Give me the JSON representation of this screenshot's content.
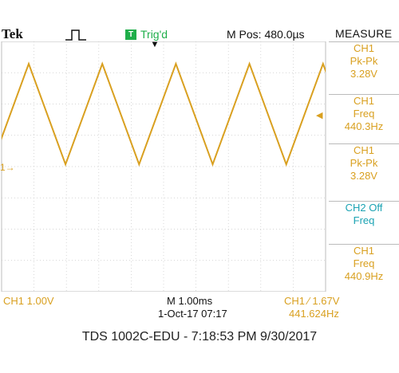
{
  "header": {
    "brand": "Tek",
    "trigger_badge": "T",
    "trigger_status": "Trig'd",
    "trigger_position_marker": "▼",
    "horizontal_position": "M Pos: 480.0µs",
    "menu_title": "MEASURE"
  },
  "measure_menu": [
    {
      "source": "CH1",
      "type": "Pk-Pk",
      "value": "3.28V",
      "color": "#d9a020"
    },
    {
      "source": "CH1",
      "type": "Freq",
      "value": "440.3Hz",
      "color": "#d9a020"
    },
    {
      "source": "CH1",
      "type": "Pk-Pk",
      "value": "3.28V",
      "color": "#d9a020"
    },
    {
      "source": "CH2 Off",
      "type": "Freq",
      "value": "",
      "color": "#1ba3b3"
    },
    {
      "source": "CH1",
      "type": "Freq",
      "value": "440.9Hz",
      "color": "#d9a020"
    }
  ],
  "markers": {
    "ch1_ground": "1→",
    "trigger_level": "◀"
  },
  "footer": {
    "ch1_scale": "CH1  1.00V",
    "time_scale": "M 1.00ms",
    "date_time": "1-Oct-17 07:17",
    "trigger_readout": "CH1  ∕  1.67V",
    "frequency_readout": "441.624Hz"
  },
  "caption": "TDS 1002C-EDU - 7:18:53 PM   9/30/2017",
  "colors": {
    "ch1_trace": "#d9a020",
    "trigger_green": "#1fae4a",
    "grid": "#c8c8c8"
  },
  "waveform": {
    "shape": "triangle",
    "frequency_hz": 440.3,
    "pk_pk_v": 3.28,
    "volts_per_div": 1.0,
    "ms_per_div": 1.0
  }
}
